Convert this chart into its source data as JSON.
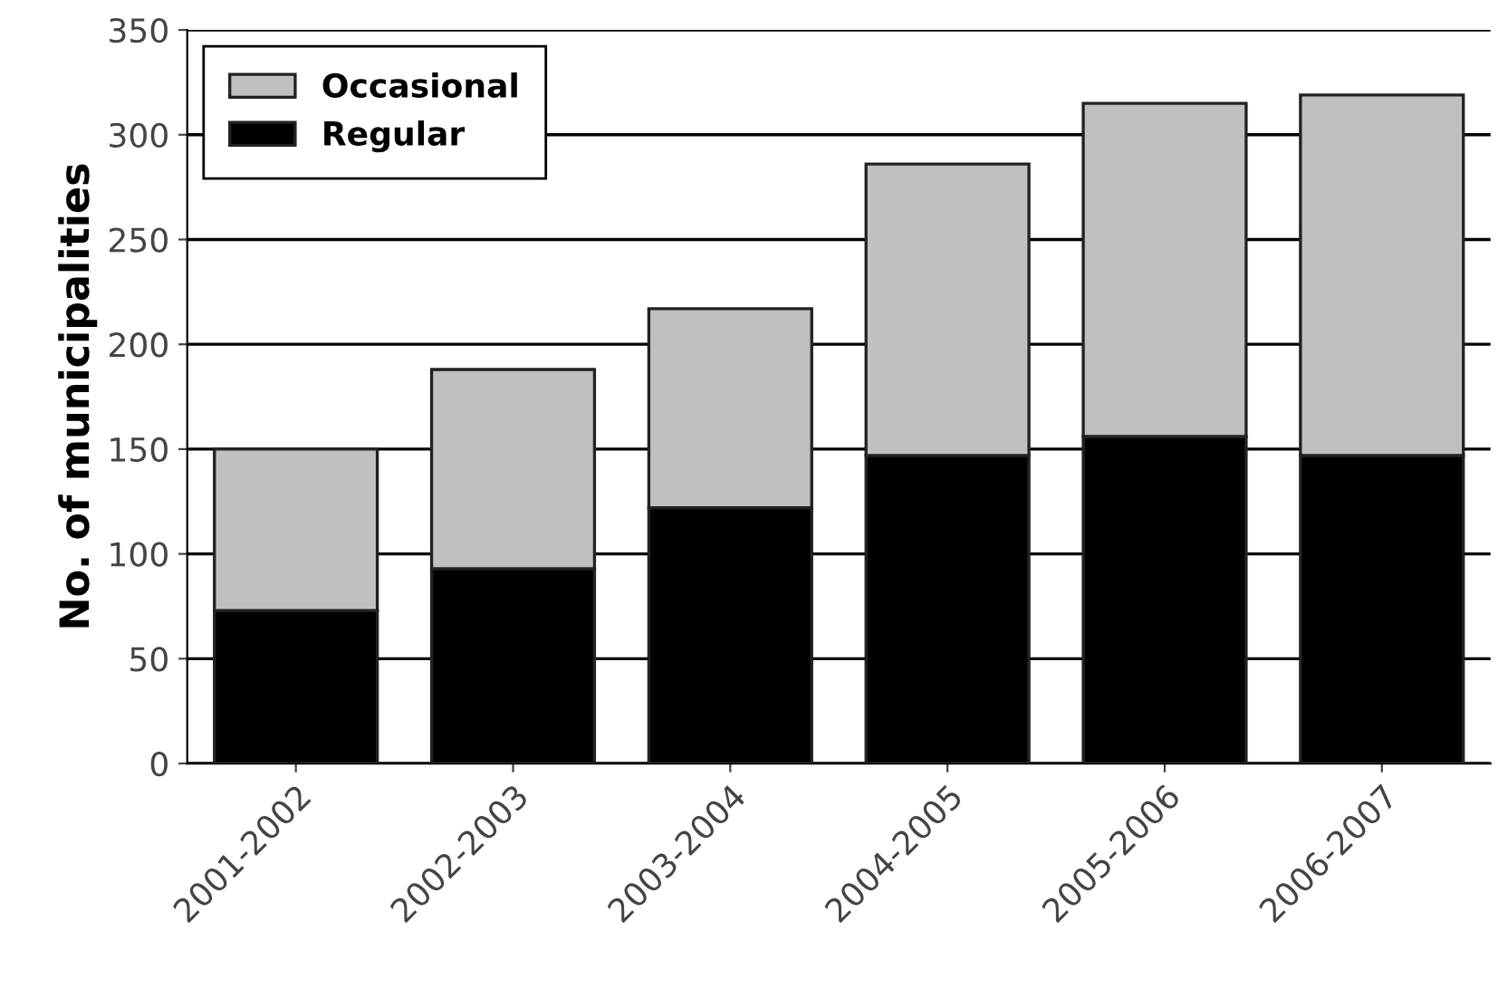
{
  "chart_data": {
    "type": "bar",
    "stacked": true,
    "ylabel": "No. of municipalities",
    "categories": [
      "2001-2002",
      "2002-2003",
      "2003-2004",
      "2004-2005",
      "2005-2006",
      "2006-2007"
    ],
    "series": [
      {
        "name": "Regular",
        "color": "#000000",
        "values": [
          73,
          93,
          122,
          147,
          156,
          147
        ]
      },
      {
        "name": "Occasional",
        "color": "#c0c0c0",
        "values": [
          77,
          95,
          95,
          139,
          159,
          172
        ]
      }
    ],
    "ylim": [
      0,
      350
    ],
    "yticks": [
      0,
      50,
      100,
      150,
      200,
      250,
      300,
      350
    ],
    "grid": "y",
    "legend": "top left"
  }
}
